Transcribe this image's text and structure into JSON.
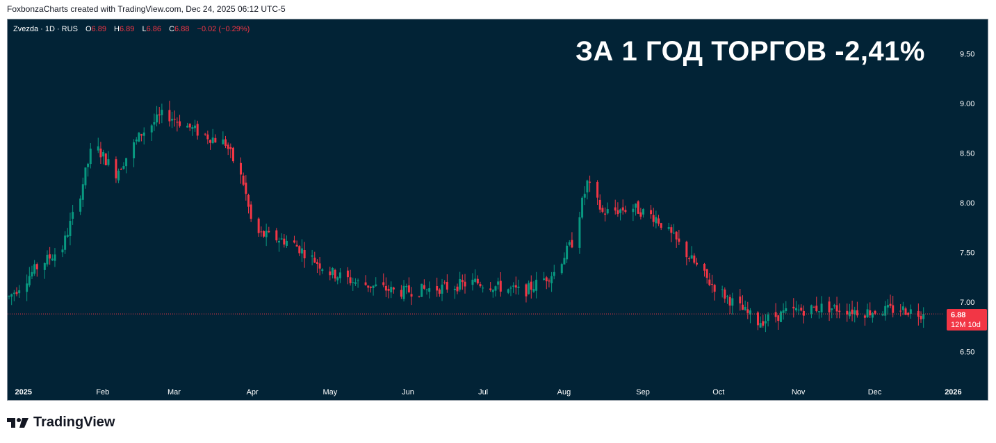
{
  "header": {
    "credit": "FoxbonzaCharts created with TradingView.com, Dec 24, 2025 06:12 UTC-5"
  },
  "legend": {
    "symbol": "Zvezda · 1D · RUS",
    "o_label": "O",
    "o_value": "6.89",
    "h_label": "H",
    "h_value": "6.89",
    "l_label": "L",
    "l_value": "6.86",
    "c_label": "C",
    "c_value": "6.88",
    "change": "−0.02 (−0.29%)"
  },
  "headline": "ЗА 1 ГОД ТОРГОВ -2,41%",
  "price_tag": {
    "price": "6.88",
    "countdown": "12M 10d"
  },
  "brand": {
    "name": "TradingView",
    "icon": "tradingview-logo-icon"
  },
  "colors": {
    "background": "#022336",
    "up": "#089981",
    "down": "#f23645",
    "axis_text": "#ffffff"
  },
  "chart_data": {
    "type": "candlestick",
    "title": "",
    "xlabel": "",
    "ylabel": "",
    "ylim": [
      6.2,
      9.7
    ],
    "xlim": [
      "2024-12-30",
      "2026-01-01"
    ],
    "y_ticks": [
      "9.50",
      "9.00",
      "8.50",
      "8.00",
      "7.50",
      "7.00",
      "6.50"
    ],
    "x_ticks": [
      {
        "label": "2025",
        "date": "2025-01-01"
      },
      {
        "label": "Feb",
        "date": "2025-02-01"
      },
      {
        "label": "Mar",
        "date": "2025-03-01"
      },
      {
        "label": "Apr",
        "date": "2025-04-01"
      },
      {
        "label": "May",
        "date": "2025-05-01"
      },
      {
        "label": "Jun",
        "date": "2025-06-01"
      },
      {
        "label": "Jul",
        "date": "2025-07-01"
      },
      {
        "label": "Aug",
        "date": "2025-08-01"
      },
      {
        "label": "Sep",
        "date": "2025-09-01"
      },
      {
        "label": "Oct",
        "date": "2025-10-01"
      },
      {
        "label": "Nov",
        "date": "2025-11-01"
      },
      {
        "label": "Dec",
        "date": "2025-12-01"
      },
      {
        "label": "2026",
        "date": "2026-01-01"
      }
    ],
    "last_price": 6.88,
    "grid": false,
    "close_anchors": [
      [
        "2024-12-30",
        7.05
      ],
      [
        "2025-01-10",
        7.35
      ],
      [
        "2025-01-20",
        7.55
      ],
      [
        "2025-01-27",
        8.1
      ],
      [
        "2025-02-01",
        8.6
      ],
      [
        "2025-02-10",
        8.3
      ],
      [
        "2025-02-20",
        8.7
      ],
      [
        "2025-03-01",
        8.9
      ],
      [
        "2025-03-15",
        8.7
      ],
      [
        "2025-03-25",
        8.6
      ],
      [
        "2025-04-01",
        8.2
      ],
      [
        "2025-04-05",
        7.7
      ],
      [
        "2025-04-20",
        7.6
      ],
      [
        "2025-05-05",
        7.3
      ],
      [
        "2025-05-15",
        7.2
      ],
      [
        "2025-06-01",
        7.1
      ],
      [
        "2025-06-20",
        7.15
      ],
      [
        "2025-07-01",
        7.2
      ],
      [
        "2025-07-20",
        7.1
      ],
      [
        "2025-08-01",
        7.3
      ],
      [
        "2025-08-08",
        7.6
      ],
      [
        "2025-08-14",
        8.2
      ],
      [
        "2025-08-20",
        7.9
      ],
      [
        "2025-09-01",
        7.95
      ],
      [
        "2025-09-10",
        7.85
      ],
      [
        "2025-09-20",
        7.55
      ],
      [
        "2025-10-01",
        7.2
      ],
      [
        "2025-10-10",
        7.0
      ],
      [
        "2025-10-20",
        6.8
      ],
      [
        "2025-11-01",
        6.9
      ],
      [
        "2025-11-15",
        6.95
      ],
      [
        "2025-12-01",
        6.9
      ],
      [
        "2025-12-15",
        6.93
      ],
      [
        "2025-12-24",
        6.88
      ]
    ]
  }
}
